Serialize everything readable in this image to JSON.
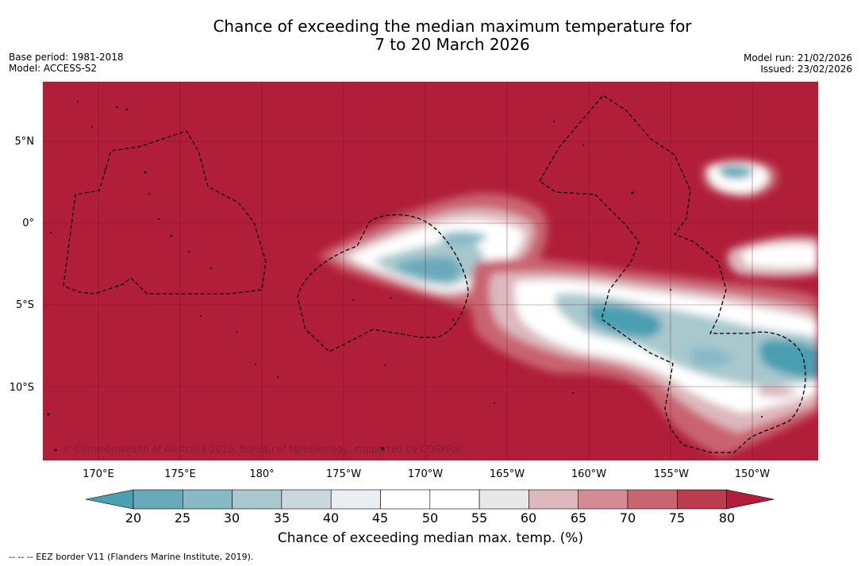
{
  "title": {
    "line1": "Chance of exceeding the median maximum temperature for",
    "line2": "7 to 20 March 2026"
  },
  "meta_left": {
    "base_period": "Base period: 1981-2018",
    "model": "Model: ACCESS-S2"
  },
  "meta_right": {
    "model_run": "Model run: 21/02/2026",
    "issued": "Issued: 23/02/2026"
  },
  "map": {
    "background_category": "> 80",
    "lat_labels": [
      "5°N",
      "0°",
      "5°S",
      "10°S"
    ],
    "lon_labels": [
      "170°E",
      "175°E",
      "180°",
      "175°W",
      "170°W",
      "165°W",
      "160°W",
      "155°W",
      "150°W"
    ],
    "copyright": "© Commonwealth of Australia 2026, Bureau of Meteorology, supported by COSPPac"
  },
  "colorbar": {
    "ticks": [
      "20",
      "25",
      "30",
      "35",
      "40",
      "45",
      "50",
      "55",
      "60",
      "65",
      "70",
      "75",
      "80"
    ],
    "colors": [
      "#4a9fb0",
      "#68aabb",
      "#88b9c6",
      "#a8c8cd",
      "#cad8de",
      "#e8eef1",
      "#ffffff",
      "#ffffff",
      "#e8e8e8",
      "#ddb8bd",
      "#d48b93",
      "#c96471",
      "#bb3c4d",
      "#b01e3a"
    ],
    "label": "Chance of exceeding median max. temp. (%)"
  },
  "footnote": "--  --  -- EEZ border V11 (Flanders Marine Institute, 2019)."
}
